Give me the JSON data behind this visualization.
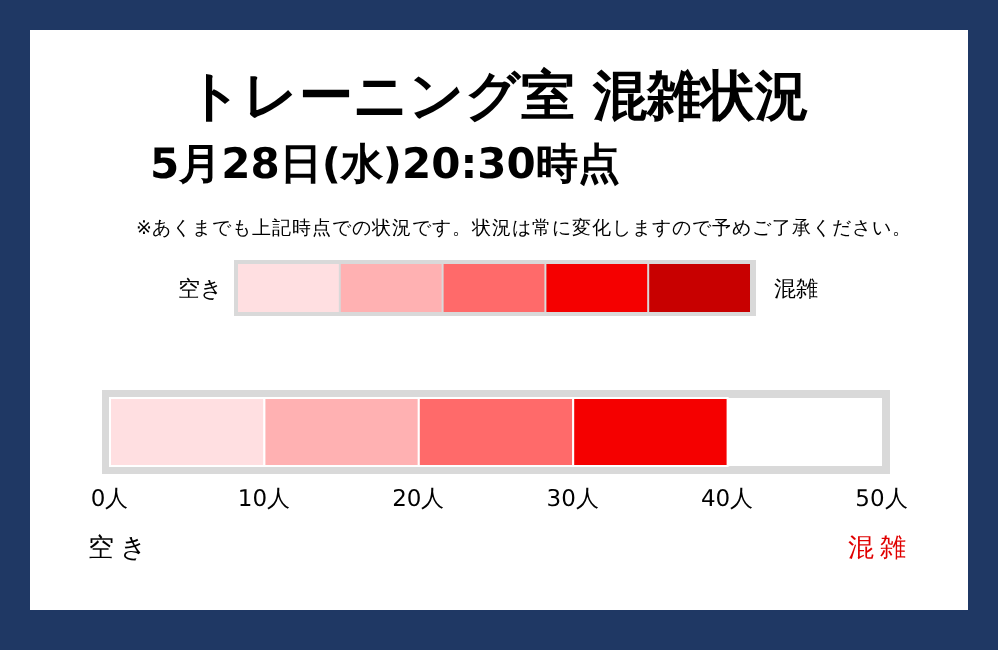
{
  "chart_data": {
    "type": "bar",
    "orientation": "horizontal",
    "stacked": true,
    "title": "トレーニング室 混雑状況",
    "subtitle": "5月28日(水)20:30時点",
    "categories": [
      null
    ],
    "series": [
      {
        "color": "#ffdfe1",
        "values": [
          10
        ]
      },
      {
        "color": "#ffb1b2",
        "values": [
          10
        ]
      },
      {
        "color": "#ff6a6a",
        "values": [
          10
        ]
      },
      {
        "color": "#f50000",
        "values": [
          10
        ]
      },
      {
        "color": "#c80000",
        "values": [
          null
        ]
      }
    ],
    "xlim": [
      0,
      50
    ],
    "xticks": [
      {
        "value": 0,
        "label": "0人"
      },
      {
        "value": 10,
        "label": "10人"
      },
      {
        "value": 20,
        "label": "20人"
      },
      {
        "value": 30,
        "label": "30人"
      },
      {
        "value": 40,
        "label": "40人"
      },
      {
        "value": 50,
        "label": "50人"
      }
    ],
    "annotations": [
      "※あくまでも上記時点での状況です。状況は常に変化しますので予めご了承ください。",
      "空き",
      "混雑",
      "空き",
      "混雑"
    ]
  }
}
